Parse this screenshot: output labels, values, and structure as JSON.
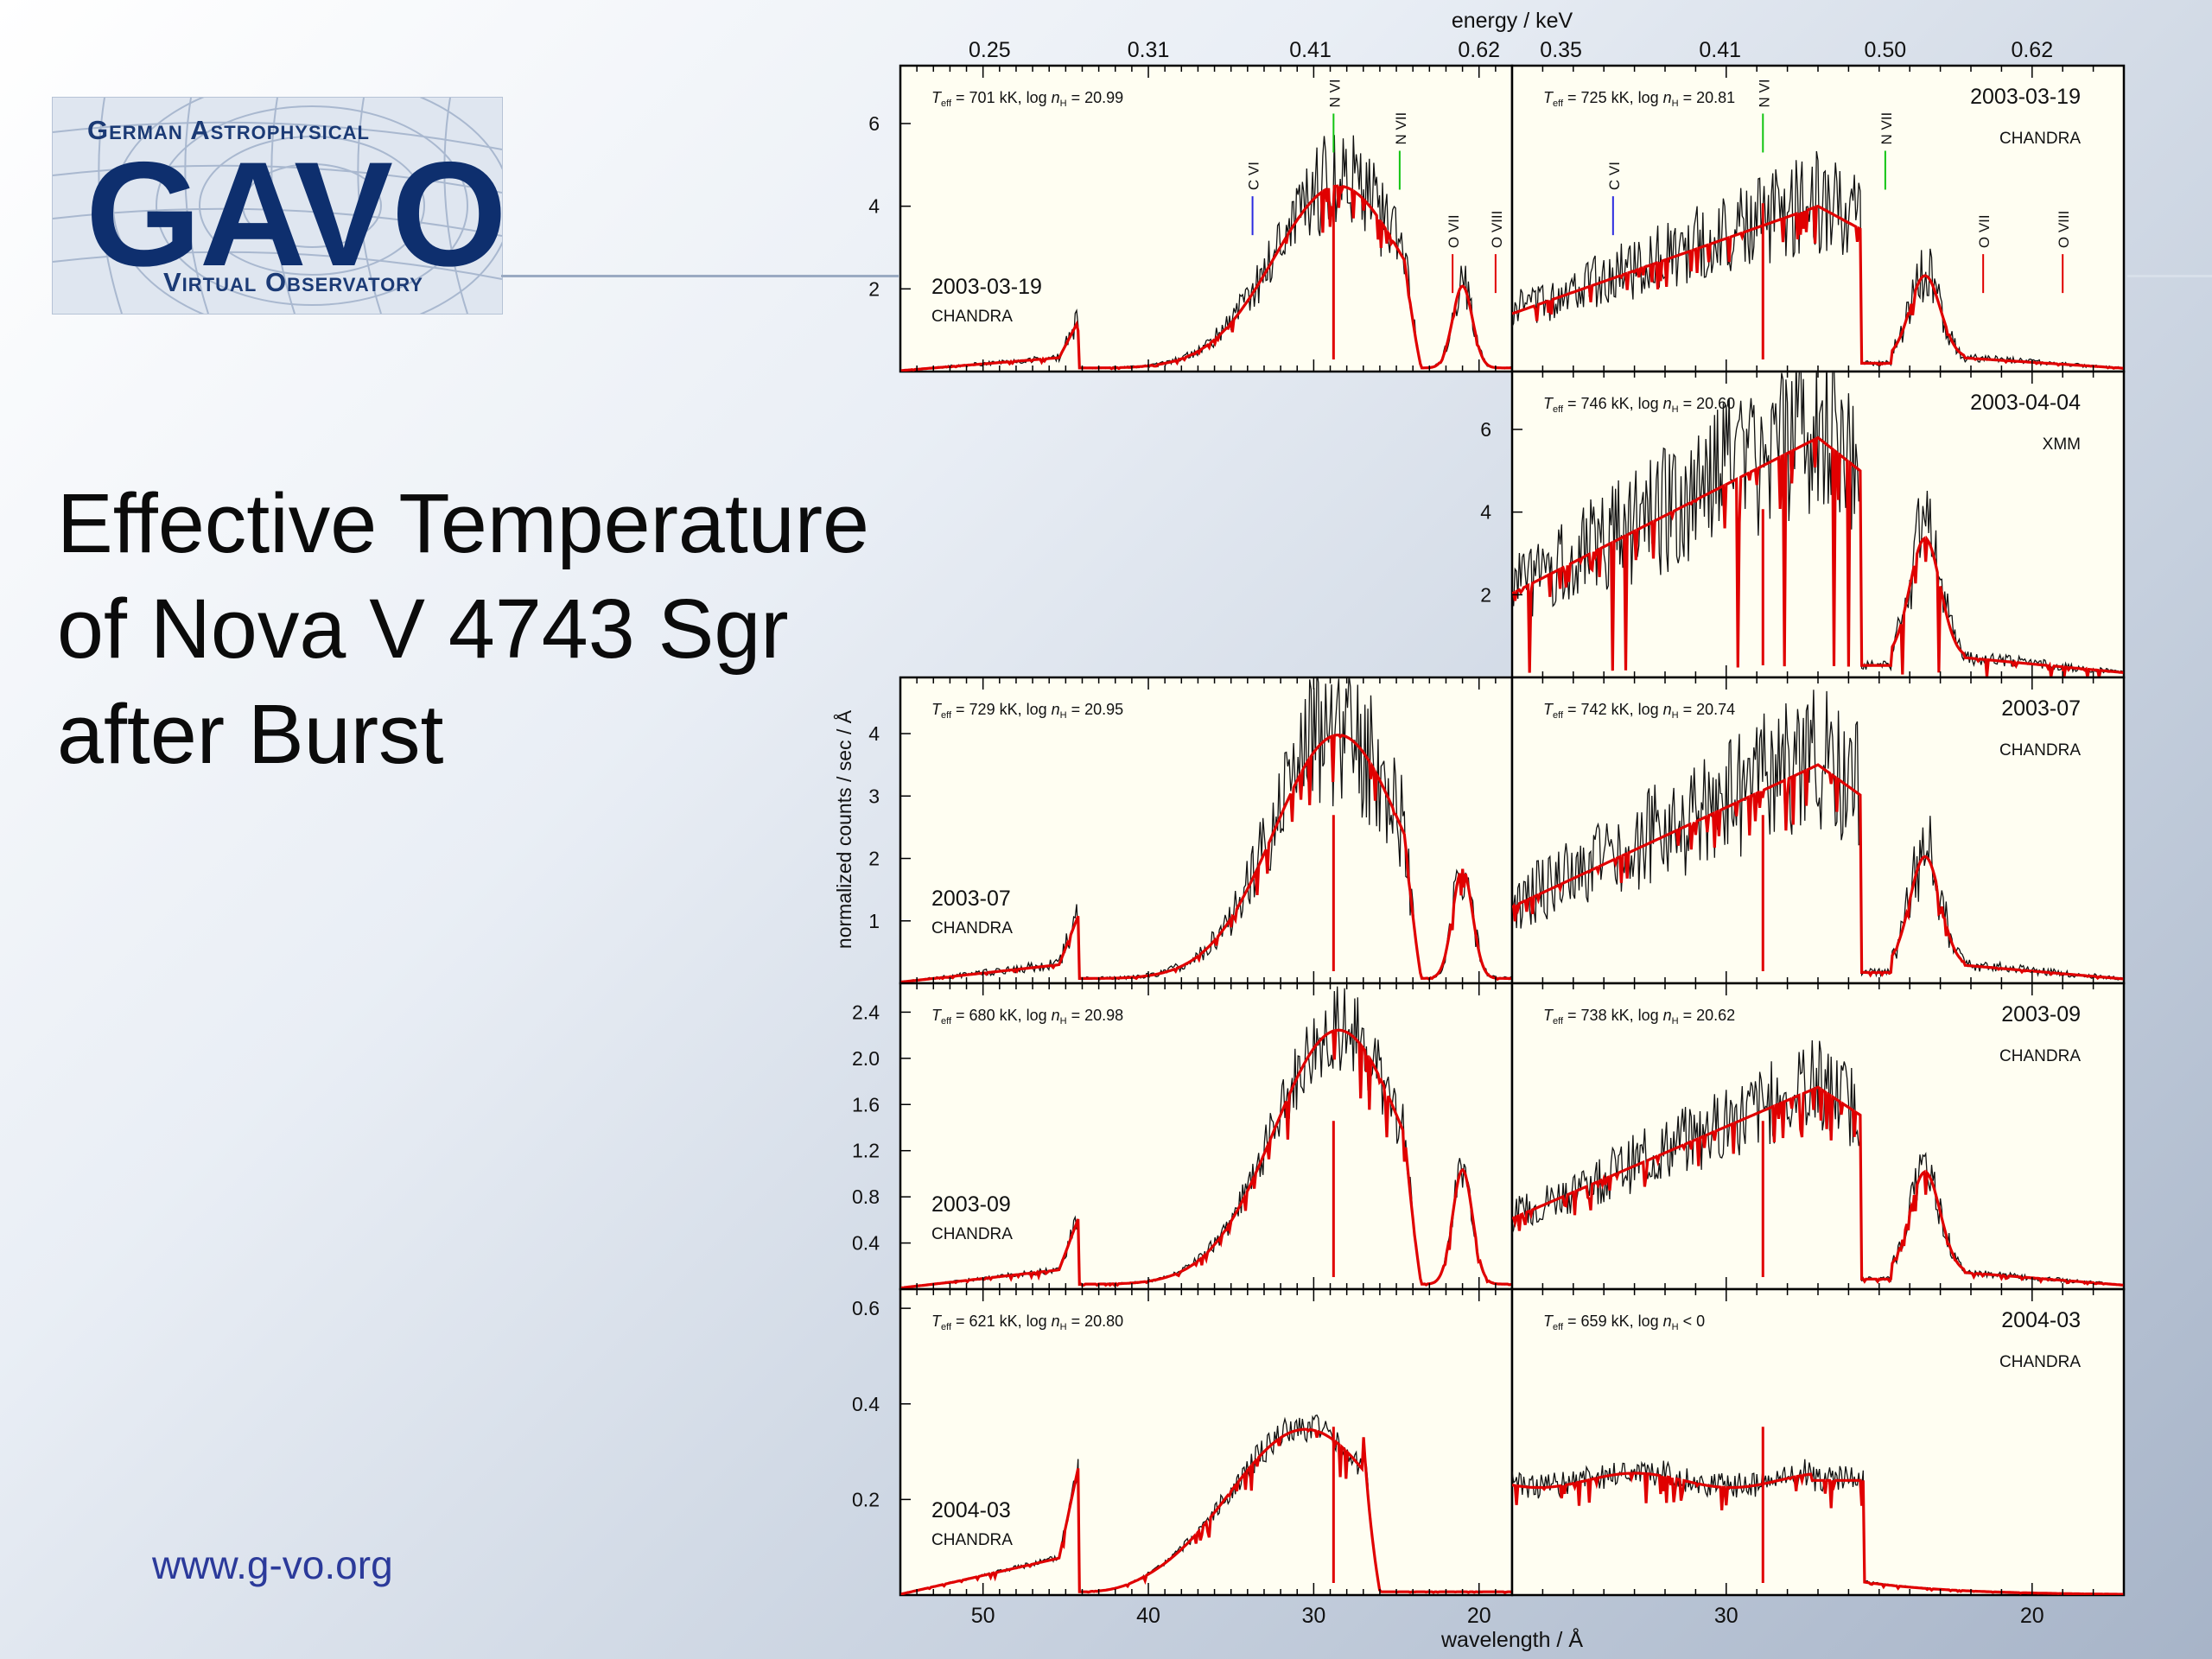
{
  "logo": {
    "top_text": "German Astrophysical",
    "big_text": "GAVO",
    "bottom_text": "Virtual Observatory"
  },
  "slide": {
    "title_lines": [
      "Effective Temperature",
      "of Nova V 4743 Sgr",
      "after Burst"
    ],
    "url": "www.g-vo.org"
  },
  "chart_data": {
    "type": "line",
    "xlabel": "wavelength / Å",
    "x2label": "energy / keV",
    "ylabel": "normalized counts / sec / Å",
    "series_styles": [
      {
        "role": "observation",
        "color": "#000000"
      },
      {
        "role": "model",
        "color": "#e00000"
      }
    ],
    "line_colors": {
      "C": "#2a2ae0",
      "N": "#12c412",
      "O": "#e00000"
    },
    "columns": [
      {
        "xrange": [
          55,
          18
        ],
        "xticks": [
          50,
          40,
          30,
          20
        ],
        "energy_ticks": [
          {
            "label": "0.25",
            "x": 49.6
          },
          {
            "label": "0.31",
            "x": 40.0
          },
          {
            "label": "0.41",
            "x": 30.2
          },
          {
            "label": "0.62",
            "x": 20.0
          }
        ]
      },
      {
        "xrange": [
          37,
          17
        ],
        "xticks": [
          30,
          20
        ],
        "energy_ticks": [
          {
            "label": "0.35",
            "x": 35.4
          },
          {
            "label": "0.41",
            "x": 30.2
          },
          {
            "label": "0.50",
            "x": 24.8
          },
          {
            "label": "0.62",
            "x": 20.0
          }
        ]
      }
    ],
    "panels": [
      {
        "row": 0,
        "col": 0,
        "date": "2003-03-19",
        "instrument": "CHANDRA",
        "label_pos": "bottom-left",
        "teff": "701",
        "nh_rel": "=",
        "nh": "20.99",
        "ylim": [
          0,
          7.4
        ],
        "yticks": [
          {
            "v": 2,
            "label": "2"
          },
          {
            "v": 4,
            "label": "4"
          },
          {
            "v": 6,
            "label": "6"
          }
        ],
        "lines": [
          {
            "name": "C VI",
            "el": "C",
            "x": 33.7,
            "y": 3.3
          },
          {
            "name": "N VI",
            "el": "N",
            "x": 28.8,
            "y": 5.3
          },
          {
            "name": "N VII",
            "el": "N",
            "x": 24.8,
            "y": 4.4
          },
          {
            "name": "O VII",
            "el": "O",
            "x": 21.6,
            "y": 1.9
          },
          {
            "name": "O VIII",
            "el": "O",
            "x": 19.0,
            "y": 1.9
          }
        ],
        "features": {
          "scale": 4.4,
          "edge": 44.2,
          "edge_h": 0.2,
          "pre_h": 0.08,
          "peak": 28.5,
          "width": 5.5,
          "cutoff": 24.5,
          "cutoff2": 21.0,
          "width2": 1.4,
          "seed": 11,
          "noise": 0.35
        }
      },
      {
        "row": 0,
        "col": 1,
        "date": "2003-03-19",
        "instrument": "CHANDRA",
        "label_pos": "top-right",
        "teff": "725",
        "nh_rel": "=",
        "nh": "20.81",
        "ylim": [
          0,
          7.4
        ],
        "yticks": [],
        "lines": [
          {
            "name": "C VI",
            "el": "C",
            "x": 33.7,
            "y": 3.3
          },
          {
            "name": "N VI",
            "el": "N",
            "x": 28.8,
            "y": 5.3
          },
          {
            "name": "N VII",
            "el": "N",
            "x": 24.8,
            "y": 4.4
          },
          {
            "name": "O VII",
            "el": "O",
            "x": 21.6,
            "y": 1.9
          },
          {
            "name": "O VIII",
            "el": "O",
            "x": 19.0,
            "y": 1.9
          }
        ],
        "features": {
          "scale": 4.0,
          "seed": 12,
          "noise": 0.4
        }
      },
      {
        "row": 1,
        "col": 1,
        "date": "2003-04-04",
        "instrument": "XMM",
        "label_pos": "top-right",
        "teff": "746",
        "nh_rel": "=",
        "nh": "20.60",
        "ylim": [
          0,
          7.4
        ],
        "yticks": [
          {
            "v": 2,
            "label": "2"
          },
          {
            "v": 4,
            "label": "4"
          },
          {
            "v": 6,
            "label": "6"
          }
        ],
        "lines": [],
        "features": {
          "scale": 5.8,
          "seed": 13,
          "noise": 0.5,
          "deep": true
        }
      },
      {
        "row": 2,
        "col": 0,
        "date": "2003-07",
        "instrument": "CHANDRA",
        "label_pos": "bottom-left",
        "teff": "729",
        "nh_rel": "=",
        "nh": "20.95",
        "ylim": [
          0,
          4.9
        ],
        "yticks": [
          {
            "v": 1,
            "label": "1"
          },
          {
            "v": 2,
            "label": "2"
          },
          {
            "v": 3,
            "label": "3"
          },
          {
            "v": 4,
            "label": "4"
          }
        ],
        "lines": [],
        "features": {
          "scale": 3.9,
          "edge": 44.2,
          "edge_h": 0.2,
          "pre_h": 0.08,
          "peak": 28.5,
          "width": 5.5,
          "cutoff": 24.5,
          "cutoff2": 21.0,
          "width2": 1.4,
          "seed": 21,
          "noise": 0.4
        }
      },
      {
        "row": 2,
        "col": 1,
        "date": "2003-07",
        "instrument": "CHANDRA",
        "label_pos": "top-right",
        "teff": "742",
        "nh_rel": "=",
        "nh": "20.74",
        "ylim": [
          0,
          4.9
        ],
        "yticks": [],
        "lines": [],
        "features": {
          "scale": 3.5,
          "seed": 22,
          "noise": 0.45
        }
      },
      {
        "row": 3,
        "col": 0,
        "date": "2003-09",
        "instrument": "CHANDRA",
        "label_pos": "bottom-left",
        "teff": "680",
        "nh_rel": "=",
        "nh": "20.98",
        "ylim": [
          0,
          2.65
        ],
        "yticks": [
          {
            "v": 0.4,
            "label": "0.4"
          },
          {
            "v": 0.8,
            "label": "0.8"
          },
          {
            "v": 1.2,
            "label": "1.2"
          },
          {
            "v": 1.6,
            "label": "1.6"
          },
          {
            "v": 2.0,
            "label": "2.0"
          },
          {
            "v": 2.4,
            "label": "2.4"
          }
        ],
        "lines": [],
        "features": {
          "scale": 2.2,
          "edge": 44.2,
          "edge_h": 0.2,
          "pre_h": 0.08,
          "peak": 28.5,
          "width": 5.5,
          "cutoff": 24.5,
          "cutoff2": 21.0,
          "width2": 1.4,
          "seed": 31,
          "noise": 0.22
        }
      },
      {
        "row": 3,
        "col": 1,
        "date": "2003-09",
        "instrument": "CHANDRA",
        "label_pos": "top-right",
        "teff": "738",
        "nh_rel": "=",
        "nh": "20.62",
        "ylim": [
          0,
          2.65
        ],
        "yticks": [],
        "lines": [],
        "features": {
          "scale": 1.75,
          "seed": 32,
          "noise": 0.3
        }
      },
      {
        "row": 4,
        "col": 0,
        "date": "2004-03",
        "instrument": "CHANDRA",
        "label_pos": "bottom-left",
        "teff": "621",
        "nh_rel": "=",
        "nh": "20.80",
        "ylim": [
          0,
          0.64
        ],
        "yticks": [
          {
            "v": 0.2,
            "label": "0.2"
          },
          {
            "v": 0.4,
            "label": "0.4"
          },
          {
            "v": 0.6,
            "label": "0.6"
          }
        ],
        "lines": [],
        "features": {
          "scale": 0.34,
          "edge": 44.2,
          "edge_h": 0.55,
          "pre_h": 0.25,
          "peak": 30.5,
          "width": 6.5,
          "cutoff": 27.0,
          "cutoff2": 27.5,
          "width2": 1.0,
          "seed": 41,
          "noise": 0.12
        }
      },
      {
        "row": 4,
        "col": 1,
        "date": "2004-03",
        "instrument": "CHANDRA",
        "label_pos": "top-right",
        "teff": "659",
        "nh_rel": "<",
        "nh": "0",
        "ylim": [
          0,
          0.64
        ],
        "yticks": [],
        "lines": [],
        "features": {
          "scale": 0.3,
          "seed": 42,
          "noise": 0.15,
          "flat": true
        }
      }
    ]
  }
}
